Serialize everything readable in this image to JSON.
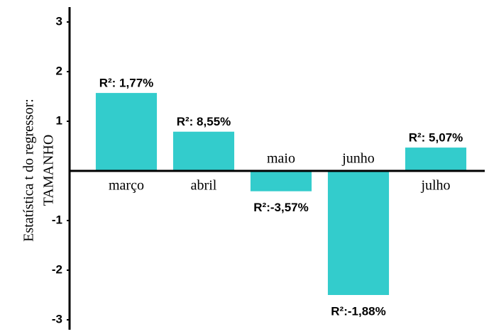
{
  "chart_data": {
    "type": "bar",
    "y_label": [
      "Estatística t  do regressor:",
      "TAMANHO"
    ],
    "categories": [
      "março",
      "abril",
      "maio",
      "junho",
      "julho"
    ],
    "values": [
      1.57,
      0.79,
      -0.41,
      -2.5,
      0.47
    ],
    "annotations": [
      "R²: 1,77%",
      "R²: 8,55%",
      "R²:-3,57%",
      "R²:-1,88%",
      "R²: 5,07%"
    ],
    "color": "#33cccc",
    "ylim": [
      -3.2,
      3.3
    ],
    "yticks": [
      -3,
      -2,
      -1,
      1,
      2,
      3
    ],
    "grid": false
  }
}
